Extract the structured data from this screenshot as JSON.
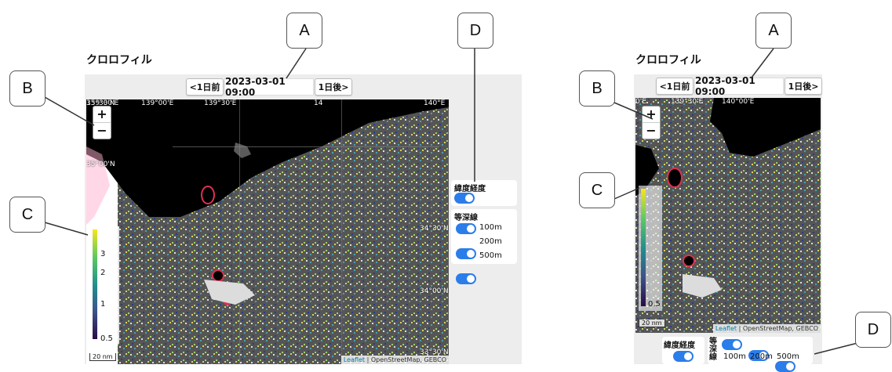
{
  "left": {
    "title": "クロロフィル",
    "prev_label": "1日前",
    "date": "2023-03-01 09:00",
    "next_label": "1日後",
    "lon_labels": [
      "139°30'E",
      "139°00'E",
      "139°30'E",
      "14",
      "140°E"
    ],
    "lat_labels": [
      "35°30'N",
      "35°00'N",
      "34°30'N",
      "34°00'N",
      "33°30'N"
    ],
    "zoom_in": "+",
    "zoom_out": "−",
    "colorbar_ticks": [
      "3",
      "2",
      "1",
      "0.5"
    ],
    "scale_label": "20 nm",
    "attribution_leaflet": "Leaflet",
    "attribution_rest": "| OpenStreetMap, GEBCO",
    "latlon_title": "緯度経度",
    "isobath_title": "等深線",
    "isobaths": [
      "100m",
      "200m",
      "500m"
    ]
  },
  "right": {
    "title": "クロロフィル",
    "prev_label": "1日前",
    "date": "2023-03-01 09:00",
    "next_label": "1日後",
    "lon_labels": [
      "0'E",
      "139°30'E",
      "140°00'E"
    ],
    "zoom_in": "+",
    "zoom_out": "−",
    "colorbar_ticks": [
      "0.5"
    ],
    "scale_label": "20 nm",
    "attribution_leaflet": "Leaflet",
    "attribution_rest": "| OpenStreetMap, GEBCO",
    "latlon_title": "緯度経度",
    "isobath_title": "等深線",
    "isobaths": [
      "100m",
      "200m",
      "500m"
    ]
  },
  "callouts": [
    "A",
    "B",
    "C",
    "D",
    "A",
    "B",
    "C",
    "D"
  ],
  "colors": {
    "toggle": "#2b7de9",
    "callout_line": "#333333",
    "ocean": "#5a5a5a",
    "land": "#000000"
  }
}
